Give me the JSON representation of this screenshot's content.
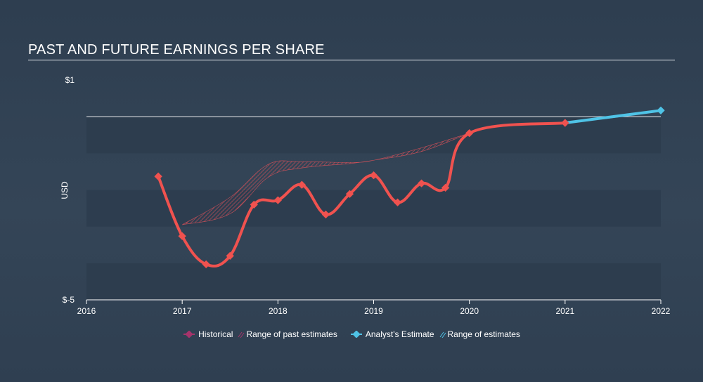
{
  "title": "PAST AND FUTURE EARNINGS PER SHARE",
  "colors": {
    "historical": "#f0524f",
    "estimate": "#4fc3e6",
    "past_range_hatch": "#e0525a",
    "future_range_hatch": "#6cc0de",
    "legend_historical_marker": "#a6346b",
    "grid_band": "#2d3c4d",
    "axis": "#ffffff",
    "text": "#ffffff"
  },
  "legend": {
    "historical": "Historical",
    "past_range": "Range of past estimates",
    "estimate": "Analyst's Estimate",
    "future_range": "Range of estimates"
  },
  "chart_data": {
    "type": "line",
    "title": "PAST AND FUTURE EARNINGS PER SHARE",
    "xlabel": "",
    "ylabel": "USD",
    "xlim": [
      2016,
      2022
    ],
    "ylim": [
      -5,
      1
    ],
    "x_ticks": [
      "2016",
      "2017",
      "2018",
      "2019",
      "2020",
      "2021",
      "2022"
    ],
    "y_ticks": [
      {
        "value": 1,
        "label": "$1"
      },
      {
        "value": -5,
        "label": "$-5"
      }
    ],
    "zero_line": 0,
    "series": [
      {
        "name": "Historical",
        "points": [
          {
            "x": 2016.75,
            "y": -1.63
          },
          {
            "x": 2017.0,
            "y": -3.26
          },
          {
            "x": 2017.25,
            "y": -4.03
          },
          {
            "x": 2017.5,
            "y": -3.8
          },
          {
            "x": 2017.75,
            "y": -2.4
          },
          {
            "x": 2018.0,
            "y": -2.28
          },
          {
            "x": 2018.25,
            "y": -1.86
          },
          {
            "x": 2018.5,
            "y": -2.67
          },
          {
            "x": 2018.75,
            "y": -2.11
          },
          {
            "x": 2019.0,
            "y": -1.6
          },
          {
            "x": 2019.25,
            "y": -2.34
          },
          {
            "x": 2019.5,
            "y": -1.82
          },
          {
            "x": 2019.75,
            "y": -1.94
          },
          {
            "x": 2020.0,
            "y": -0.45
          },
          {
            "x": 2021.0,
            "y": -0.17
          }
        ]
      },
      {
        "name": "Analyst's Estimate",
        "points": [
          {
            "x": 2021.0,
            "y": -0.17
          },
          {
            "x": 2022.0,
            "y": 0.17
          }
        ]
      }
    ],
    "ranges": [
      {
        "name": "Range of past estimates",
        "x": [
          2017.0,
          2017.5,
          2017.9,
          2018.25,
          2018.75,
          2019.0,
          2019.5,
          2020.0
        ],
        "high": [
          -2.95,
          -2.2,
          -1.3,
          -1.23,
          -1.25,
          -1.19,
          -0.85,
          -0.45
        ],
        "low": [
          -2.95,
          -2.65,
          -1.65,
          -1.4,
          -1.28,
          -1.19,
          -0.95,
          -0.45
        ]
      },
      {
        "name": "Range of estimates",
        "x": [
          2021.0,
          2021.5,
          2022.0
        ],
        "high": [
          -0.17,
          0.0,
          0.17
        ],
        "low": [
          -0.17,
          -0.03,
          0.17
        ]
      }
    ],
    "grid": false,
    "legend_position": "bottom-center"
  }
}
